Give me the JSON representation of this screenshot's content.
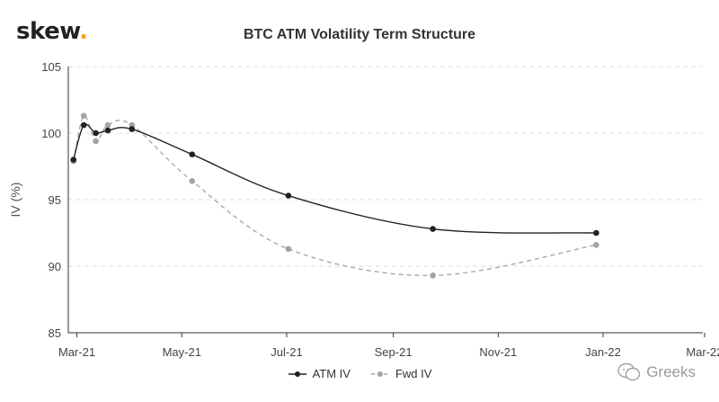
{
  "header": {
    "logo_text": "skew",
    "logo_dot": "."
  },
  "watermark": {
    "text": "Greeks"
  },
  "chart_data": {
    "type": "line",
    "title": "BTC ATM Volatility Term Structure",
    "xlabel": "",
    "ylabel": "IV (%)",
    "ylim": [
      85,
      105
    ],
    "yticks": [
      85,
      90,
      95,
      100,
      105
    ],
    "xticks": [
      "Mar-21",
      "May-21",
      "Jul-21",
      "Sep-21",
      "Nov-21",
      "Jan-22",
      "Mar-22"
    ],
    "x_domain_days": [
      -5,
      364
    ],
    "xtick_days": [
      0,
      61,
      122,
      184,
      245,
      306,
      365
    ],
    "grid": true,
    "legend_position": "bottom-center",
    "series": [
      {
        "name": "ATM IV",
        "color": "#222222",
        "style": "solid",
        "points": [
          {
            "day": -2,
            "value": 98.0
          },
          {
            "day": 4,
            "value": 100.6
          },
          {
            "day": 11,
            "value": 100.0
          },
          {
            "day": 18,
            "value": 100.2
          },
          {
            "day": 32,
            "value": 100.3
          },
          {
            "day": 67,
            "value": 98.4
          },
          {
            "day": 123,
            "value": 95.3
          },
          {
            "day": 207,
            "value": 92.8
          },
          {
            "day": 302,
            "value": 92.5
          }
        ]
      },
      {
        "name": "Fwd IV",
        "color": "#a3a3a3",
        "style": "dashed",
        "points": [
          {
            "day": -2,
            "value": 97.9
          },
          {
            "day": 4,
            "value": 101.3
          },
          {
            "day": 11,
            "value": 99.4
          },
          {
            "day": 18,
            "value": 100.6
          },
          {
            "day": 32,
            "value": 100.6
          },
          {
            "day": 67,
            "value": 96.4
          },
          {
            "day": 123,
            "value": 91.3
          },
          {
            "day": 207,
            "value": 89.3
          },
          {
            "day": 302,
            "value": 91.6
          }
        ]
      }
    ]
  }
}
